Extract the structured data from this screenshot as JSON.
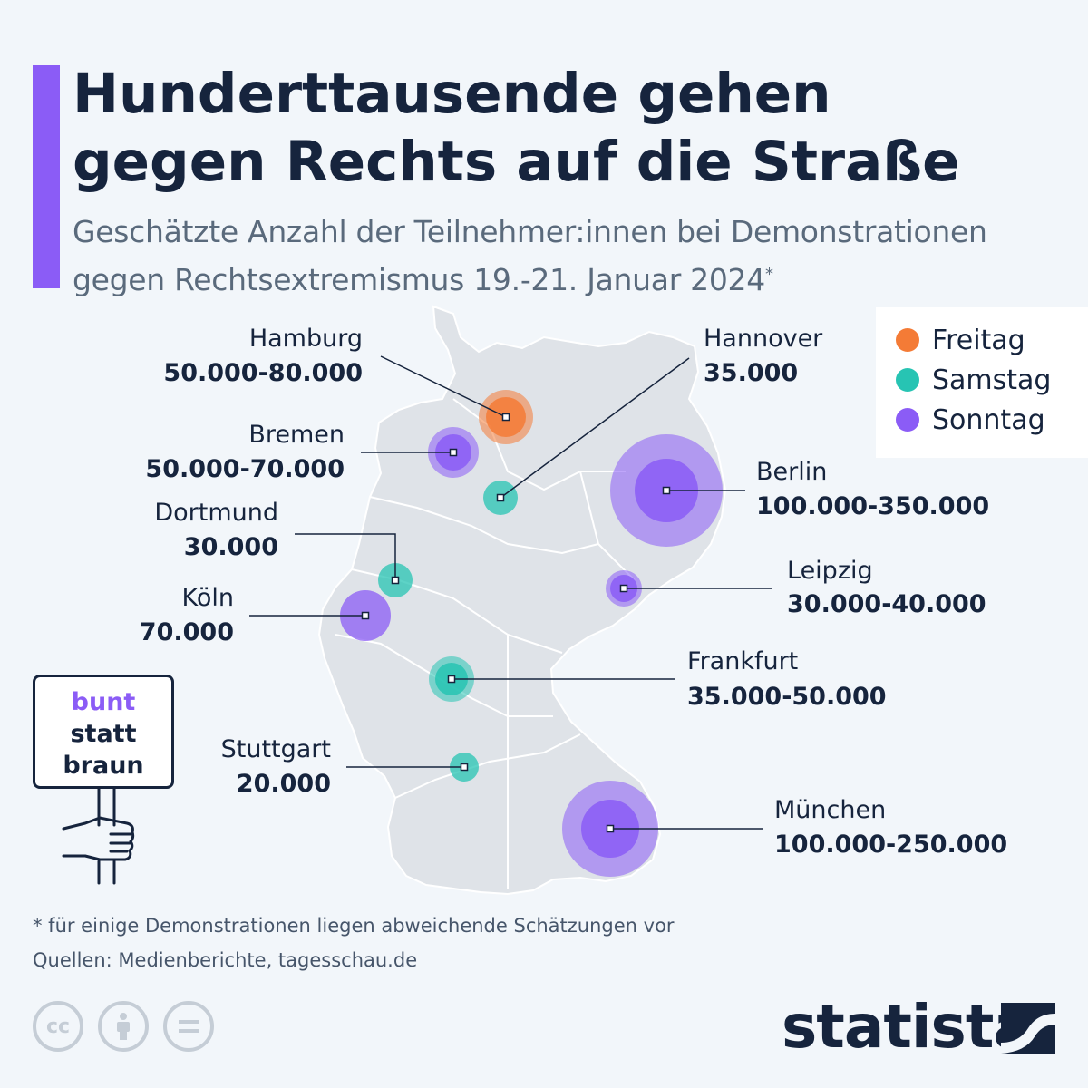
{
  "header": {
    "title_line1": "Hunderttausende gehen",
    "title_line2": "gegen Rechts auf die Straße",
    "subtitle_line1": "Geschätzte Anzahl der Teilnehmer:innen bei Demonstrationen",
    "subtitle_line2": "gegen Rechtsextremismus 19.-21. Januar 2024",
    "subtitle_mark": "*"
  },
  "legend": {
    "items": [
      {
        "label": "Freitag",
        "color": "#f47b36"
      },
      {
        "label": "Samstag",
        "color": "#27c4b3"
      },
      {
        "label": "Sonntag",
        "color": "#8b5cf6"
      }
    ]
  },
  "cities": [
    {
      "name": "Hamburg",
      "value": "50.000-80.000",
      "day": "Freitag"
    },
    {
      "name": "Hannover",
      "value": "35.000",
      "day": "Samstag"
    },
    {
      "name": "Bremen",
      "value": "50.000-70.000",
      "day": "Sonntag"
    },
    {
      "name": "Berlin",
      "value": "100.000-350.000",
      "day": "Sonntag"
    },
    {
      "name": "Dortmund",
      "value": "30.000",
      "day": "Samstag"
    },
    {
      "name": "Leipzig",
      "value": "30.000-40.000",
      "day": "Sonntag"
    },
    {
      "name": "Köln",
      "value": "70.000",
      "day": "Sonntag"
    },
    {
      "name": "Frankfurt",
      "value": "35.000-50.000",
      "day": "Samstag"
    },
    {
      "name": "Stuttgart",
      "value": "20.000",
      "day": "Samstag"
    },
    {
      "name": "München",
      "value": "100.000-250.000",
      "day": "Sonntag"
    }
  ],
  "sign": {
    "line1": "bunt",
    "line2": "statt",
    "line3": "braun"
  },
  "footer": {
    "note": "* für einige Demonstrationen liegen abweichende Schätzungen vor",
    "source": "Quellen: Medienberichte, tagesschau.de",
    "brand": "statista",
    "cc_icons": [
      "cc-icon",
      "attribution-icon",
      "no-derivatives-icon"
    ]
  }
}
